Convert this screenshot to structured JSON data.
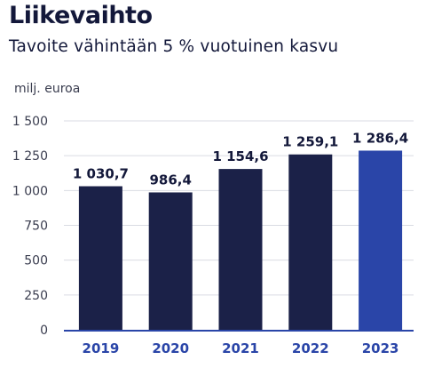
{
  "header": {
    "title": "Liikevaihto",
    "subtitle": "Tavoite vähintään 5 % vuotuinen kasvu"
  },
  "chart_data": {
    "type": "bar",
    "title": "Liikevaihto",
    "subtitle": "Tavoite vähintään 5 % vuotuinen kasvu",
    "ylabel": "milj. euroa",
    "xlabel": "",
    "categories": [
      "2019",
      "2020",
      "2021",
      "2022",
      "2023"
    ],
    "values": [
      1030.7,
      986.4,
      1154.6,
      1259.1,
      1286.4
    ],
    "value_labels": [
      "1 030,7",
      "986,4",
      "1 154,6",
      "1 259,1",
      "1 286,4"
    ],
    "yticks": [
      0,
      250,
      500,
      750,
      1000,
      1250,
      1500
    ],
    "ytick_labels": [
      "0",
      "250",
      "500",
      "750",
      "1 000",
      "1 250",
      "1 500"
    ],
    "ylim": [
      0,
      1500
    ],
    "grid": true,
    "legend": "none",
    "colors": {
      "bar": "#1b2148",
      "highlight_bar": "#2a45a8",
      "highlight_index": 4,
      "grid": "#d9dbe3",
      "baseline": "#2a45a8",
      "xtick": "#2a45a8",
      "text": "#13183a",
      "axis_text": "#3a3d4f"
    }
  }
}
